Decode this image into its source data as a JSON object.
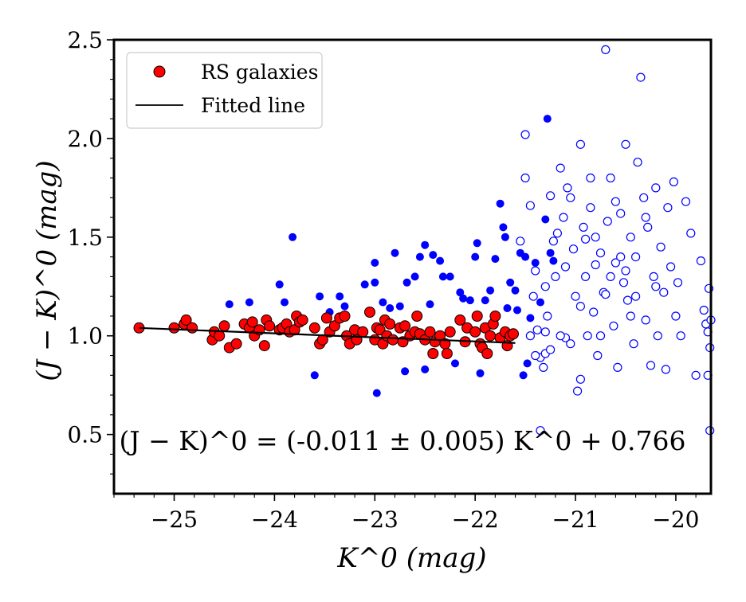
{
  "chart_data": {
    "type": "scatter",
    "xlabel": "K^0 (mag)",
    "ylabel": "(J − K)^0 (mag)",
    "xlim": [
      -25.6,
      -19.65
    ],
    "ylim": [
      0.2,
      2.5
    ],
    "x_ticks": [
      -25,
      -24,
      -23,
      -22,
      -21,
      -20
    ],
    "x_tick_labels": [
      "−25",
      "−24",
      "−23",
      "−22",
      "−21",
      "−20"
    ],
    "y_ticks": [
      0.5,
      1.0,
      1.5,
      2.0,
      2.5
    ],
    "y_tick_labels": [
      "0.5",
      "1.0",
      "1.5",
      "2.0",
      "2.5"
    ],
    "legend": {
      "position": "top-left",
      "entries": [
        {
          "label": "RS galaxies",
          "marker": "red-circle"
        },
        {
          "label": "Fitted line",
          "marker": "black-line"
        }
      ]
    },
    "annotation": "(J − K)^0 = (-0.011 ± 0.005) K^0 + 0.766",
    "fit": {
      "slope": -0.011,
      "intercept": 0.766,
      "x_range": [
        -25.35,
        -21.6
      ]
    },
    "colors": {
      "rs": "#ff0000",
      "blue": "#0000ff",
      "line": "#000000"
    },
    "series": [
      {
        "name": "RS galaxies",
        "style": "red-filled",
        "points": [
          [
            -25.35,
            1.04
          ],
          [
            -25.0,
            1.04
          ],
          [
            -24.9,
            1.06
          ],
          [
            -24.88,
            1.08
          ],
          [
            -24.82,
            1.04
          ],
          [
            -24.62,
            0.98
          ],
          [
            -24.6,
            1.02
          ],
          [
            -24.55,
            1.0
          ],
          [
            -24.5,
            1.05
          ],
          [
            -24.45,
            0.94
          ],
          [
            -24.38,
            0.96
          ],
          [
            -24.3,
            1.06
          ],
          [
            -24.25,
            1.04
          ],
          [
            -24.22,
            1.07
          ],
          [
            -24.2,
            1.0
          ],
          [
            -24.15,
            1.03
          ],
          [
            -24.1,
            0.95
          ],
          [
            -24.08,
            1.08
          ],
          [
            -24.05,
            1.05
          ],
          [
            -23.95,
            1.03
          ],
          [
            -23.92,
            1.04
          ],
          [
            -23.88,
            1.06
          ],
          [
            -23.85,
            1.02
          ],
          [
            -23.8,
            1.03
          ],
          [
            -23.78,
            1.1
          ],
          [
            -23.75,
            1.07
          ],
          [
            -23.72,
            1.08
          ],
          [
            -23.6,
            1.04
          ],
          [
            -23.55,
            0.96
          ],
          [
            -23.52,
            0.98
          ],
          [
            -23.48,
            1.09
          ],
          [
            -23.45,
            1.02
          ],
          [
            -23.4,
            1.05
          ],
          [
            -23.35,
            1.09
          ],
          [
            -23.3,
            1.1
          ],
          [
            -23.28,
            1.0
          ],
          [
            -23.25,
            0.96
          ],
          [
            -23.2,
            1.03
          ],
          [
            -23.18,
            0.98
          ],
          [
            -23.12,
            1.02
          ],
          [
            -23.05,
            1.12
          ],
          [
            -23.0,
            0.98
          ],
          [
            -22.98,
            1.04
          ],
          [
            -22.95,
            1.03
          ],
          [
            -22.92,
            0.96
          ],
          [
            -22.9,
            1.08
          ],
          [
            -22.88,
            1.0
          ],
          [
            -22.85,
            1.06
          ],
          [
            -22.82,
            0.98
          ],
          [
            -22.75,
            1.04
          ],
          [
            -22.72,
            0.97
          ],
          [
            -22.7,
            1.05
          ],
          [
            -22.65,
            1.0
          ],
          [
            -22.6,
            1.02
          ],
          [
            -22.58,
            1.1
          ],
          [
            -22.55,
            1.01
          ],
          [
            -22.5,
            0.98
          ],
          [
            -22.45,
            1.02
          ],
          [
            -22.42,
            0.91
          ],
          [
            -22.4,
            0.97
          ],
          [
            -22.35,
            1.0
          ],
          [
            -22.3,
            0.96
          ],
          [
            -22.28,
            0.91
          ],
          [
            -22.25,
            1.02
          ],
          [
            -22.15,
            1.08
          ],
          [
            -22.1,
            0.97
          ],
          [
            -22.08,
            1.04
          ],
          [
            -22.0,
            1.02
          ],
          [
            -21.98,
            1.1
          ],
          [
            -21.95,
            0.96
          ],
          [
            -21.93,
            0.94
          ],
          [
            -21.9,
            1.04
          ],
          [
            -21.88,
            0.91
          ],
          [
            -21.85,
            1.0
          ],
          [
            -21.82,
            1.06
          ],
          [
            -21.8,
            1.1
          ],
          [
            -21.75,
            0.99
          ],
          [
            -21.7,
            1.02
          ],
          [
            -21.68,
            0.95
          ],
          [
            -21.65,
            1.0
          ],
          [
            -21.62,
            1.01
          ]
        ]
      },
      {
        "name": "blue filled",
        "style": "blue-filled",
        "points": [
          [
            -24.45,
            1.16
          ],
          [
            -24.25,
            1.17
          ],
          [
            -23.95,
            1.26
          ],
          [
            -23.9,
            1.17
          ],
          [
            -23.82,
            1.5
          ],
          [
            -23.6,
            0.8
          ],
          [
            -23.55,
            1.2
          ],
          [
            -23.45,
            1.12
          ],
          [
            -23.35,
            1.2
          ],
          [
            -23.3,
            1.15
          ],
          [
            -23.1,
            1.26
          ],
          [
            -23.0,
            1.27
          ],
          [
            -23.0,
            1.37
          ],
          [
            -22.98,
            0.71
          ],
          [
            -22.92,
            1.17
          ],
          [
            -22.85,
            1.14
          ],
          [
            -22.8,
            1.42
          ],
          [
            -22.75,
            1.15
          ],
          [
            -22.7,
            0.82
          ],
          [
            -22.68,
            1.27
          ],
          [
            -22.6,
            1.3
          ],
          [
            -22.55,
            1.4
          ],
          [
            -22.5,
            1.46
          ],
          [
            -22.5,
            0.83
          ],
          [
            -22.45,
            1.16
          ],
          [
            -22.42,
            1.41
          ],
          [
            -22.35,
            1.38
          ],
          [
            -22.32,
            1.3
          ],
          [
            -22.25,
            1.3
          ],
          [
            -22.2,
            0.86
          ],
          [
            -22.15,
            1.22
          ],
          [
            -22.12,
            1.19
          ],
          [
            -22.05,
            1.18
          ],
          [
            -22.0,
            1.4
          ],
          [
            -21.98,
            1.47
          ],
          [
            -21.95,
            0.81
          ],
          [
            -21.9,
            1.18
          ],
          [
            -21.85,
            1.23
          ],
          [
            -21.8,
            1.39
          ],
          [
            -21.75,
            1.67
          ],
          [
            -21.72,
            1.55
          ],
          [
            -21.7,
            1.5
          ],
          [
            -21.68,
            1.14
          ],
          [
            -21.65,
            1.27
          ],
          [
            -21.6,
            1.23
          ],
          [
            -21.58,
            1.13
          ],
          [
            -21.55,
            1.42
          ],
          [
            -21.52,
            0.8
          ],
          [
            -21.5,
            1.4
          ],
          [
            -21.48,
            0.86
          ],
          [
            -21.45,
            1.09
          ],
          [
            -21.4,
            1.37
          ],
          [
            -21.35,
            1.17
          ],
          [
            -21.3,
            1.59
          ],
          [
            -21.28,
            2.1
          ],
          [
            -21.25,
            1.42
          ],
          [
            -21.22,
            1.38
          ]
        ]
      },
      {
        "name": "blue open",
        "style": "blue-open",
        "points": [
          [
            -21.55,
            1.48
          ],
          [
            -21.5,
            2.02
          ],
          [
            -21.5,
            1.8
          ],
          [
            -21.45,
            1.66
          ],
          [
            -21.42,
            1.2
          ],
          [
            -21.4,
            1.33
          ],
          [
            -21.38,
            1.03
          ],
          [
            -21.35,
            0.89
          ],
          [
            -21.32,
            0.84
          ],
          [
            -21.3,
            1.25
          ],
          [
            -21.28,
            1.1
          ],
          [
            -21.25,
            1.71
          ],
          [
            -21.22,
            1.48
          ],
          [
            -21.2,
            1.3
          ],
          [
            -21.18,
            1.52
          ],
          [
            -21.15,
            1.85
          ],
          [
            -21.12,
            1.6
          ],
          [
            -21.1,
            1.35
          ],
          [
            -21.1,
            0.99
          ],
          [
            -21.08,
            1.75
          ],
          [
            -21.05,
            1.7
          ],
          [
            -21.02,
            1.44
          ],
          [
            -21.0,
            1.2
          ],
          [
            -20.98,
            0.72
          ],
          [
            -20.95,
            1.15
          ],
          [
            -20.95,
            1.97
          ],
          [
            -20.92,
            1.55
          ],
          [
            -20.9,
            1.3
          ],
          [
            -20.88,
            1.0
          ],
          [
            -20.85,
            1.65
          ],
          [
            -20.82,
            1.12
          ],
          [
            -20.8,
            1.5
          ],
          [
            -20.78,
            0.9
          ],
          [
            -20.75,
            1.42
          ],
          [
            -20.72,
            1.22
          ],
          [
            -20.7,
            2.45
          ],
          [
            -20.68,
            1.58
          ],
          [
            -20.65,
            1.8
          ],
          [
            -20.62,
            1.05
          ],
          [
            -20.6,
            1.37
          ],
          [
            -20.58,
            0.84
          ],
          [
            -20.55,
            1.62
          ],
          [
            -20.52,
            1.27
          ],
          [
            -20.5,
            1.97
          ],
          [
            -20.48,
            1.18
          ],
          [
            -20.45,
            1.5
          ],
          [
            -20.42,
            0.96
          ],
          [
            -20.4,
            1.4
          ],
          [
            -20.38,
            1.88
          ],
          [
            -20.35,
            2.31
          ],
          [
            -20.32,
            1.7
          ],
          [
            -20.3,
            1.08
          ],
          [
            -20.28,
            1.55
          ],
          [
            -20.25,
            0.85
          ],
          [
            -20.22,
            1.3
          ],
          [
            -20.2,
            1.75
          ],
          [
            -20.18,
            1.0
          ],
          [
            -20.15,
            1.45
          ],
          [
            -20.12,
            1.22
          ],
          [
            -20.1,
            0.83
          ],
          [
            -20.08,
            1.65
          ],
          [
            -20.05,
            1.35
          ],
          [
            -20.02,
            1.78
          ],
          [
            -20.0,
            1.1
          ],
          [
            -19.98,
            1.27
          ],
          [
            -19.95,
            1.0
          ],
          [
            -19.9,
            1.68
          ],
          [
            -19.85,
            1.52
          ],
          [
            -19.8,
            0.8
          ],
          [
            -19.75,
            1.38
          ],
          [
            -19.72,
            1.13
          ],
          [
            -19.7,
            1.06
          ],
          [
            -19.68,
            1.02
          ],
          [
            -19.66,
            0.94
          ],
          [
            -19.65,
            1.08
          ],
          [
            -19.66,
            0.52
          ],
          [
            -19.67,
            1.24
          ],
          [
            -19.68,
            0.8
          ],
          [
            -21.35,
            0.52
          ],
          [
            -21.3,
            0.91
          ],
          [
            -20.85,
            1.8
          ],
          [
            -20.65,
            1.3
          ],
          [
            -20.55,
            1.4
          ],
          [
            -20.45,
            1.1
          ],
          [
            -20.3,
            1.6
          ],
          [
            -21.15,
            1.0
          ],
          [
            -21.05,
            0.96
          ],
          [
            -20.95,
            0.78
          ],
          [
            -20.75,
            1.0
          ],
          [
            -20.6,
            1.68
          ],
          [
            -20.5,
            1.33
          ],
          [
            -20.4,
            1.2
          ],
          [
            -20.2,
            1.25
          ],
          [
            -21.25,
            0.93
          ],
          [
            -21.4,
            0.9
          ],
          [
            -21.45,
            1.0
          ],
          [
            -21.3,
            1.02
          ],
          [
            -20.9,
            1.49
          ],
          [
            -20.8,
            1.36
          ],
          [
            -20.7,
            1.21
          ]
        ]
      }
    ]
  }
}
